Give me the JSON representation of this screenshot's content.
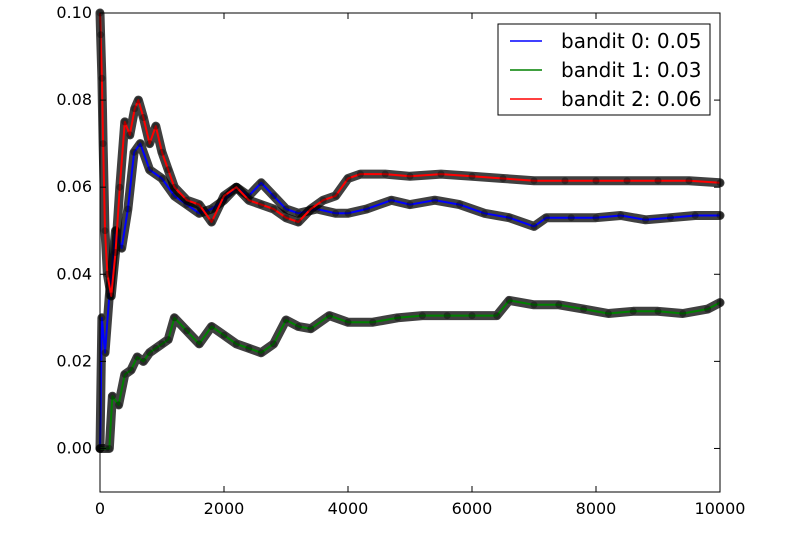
{
  "chart_data": {
    "type": "line",
    "title": "",
    "xlabel": "",
    "ylabel": "",
    "xlim": [
      0,
      10000
    ],
    "ylim": [
      -0.01,
      0.1
    ],
    "x_ticks": [
      0,
      2000,
      4000,
      6000,
      8000,
      10000
    ],
    "x_tick_labels": [
      "0",
      "2000",
      "4000",
      "6000",
      "8000",
      "10000"
    ],
    "y_ticks": [
      0.0,
      0.02,
      0.04,
      0.06,
      0.08,
      0.1
    ],
    "y_tick_labels": [
      "0.00",
      "0.02",
      "0.04",
      "0.06",
      "0.08",
      "0.10"
    ],
    "grid": false,
    "legend_position": "top-right",
    "legend": [
      "bandit 0: 0.05",
      "bandit 1: 0.03",
      "bandit 2: 0.06"
    ],
    "series": [
      {
        "name": "bandit 0: 0.05",
        "color": "#0000ff",
        "x": [
          0,
          30,
          80,
          150,
          250,
          350,
          450,
          550,
          650,
          800,
          1000,
          1200,
          1400,
          1600,
          1800,
          2000,
          2200,
          2400,
          2600,
          2800,
          3000,
          3200,
          3500,
          3800,
          4000,
          4300,
          4700,
          5000,
          5400,
          5800,
          6200,
          6600,
          7000,
          7200,
          7600,
          8000,
          8400,
          8800,
          9200,
          9600,
          10000
        ],
        "y": [
          0.0,
          0.03,
          0.022,
          0.035,
          0.05,
          0.046,
          0.055,
          0.068,
          0.07,
          0.064,
          0.062,
          0.058,
          0.056,
          0.054,
          0.055,
          0.057,
          0.06,
          0.058,
          0.061,
          0.058,
          0.055,
          0.054,
          0.055,
          0.054,
          0.054,
          0.055,
          0.057,
          0.056,
          0.057,
          0.056,
          0.054,
          0.053,
          0.051,
          0.053,
          0.053,
          0.053,
          0.0535,
          0.0525,
          0.053,
          0.0535,
          0.0535
        ]
      },
      {
        "name": "bandit 1: 0.03",
        "color": "#008000",
        "x": [
          0,
          100,
          150,
          200,
          300,
          400,
          500,
          600,
          700,
          800,
          900,
          1000,
          1100,
          1200,
          1400,
          1600,
          1800,
          2000,
          2200,
          2400,
          2600,
          2800,
          3000,
          3200,
          3400,
          3700,
          4000,
          4400,
          4800,
          5200,
          5600,
          6000,
          6400,
          6600,
          7000,
          7400,
          7800,
          8200,
          8600,
          9000,
          9400,
          9800,
          10000
        ],
        "y": [
          0.0,
          0.0,
          0.0,
          0.012,
          0.01,
          0.017,
          0.018,
          0.021,
          0.02,
          0.022,
          0.023,
          0.024,
          0.025,
          0.03,
          0.027,
          0.024,
          0.028,
          0.026,
          0.024,
          0.023,
          0.022,
          0.024,
          0.0295,
          0.028,
          0.0275,
          0.0305,
          0.029,
          0.029,
          0.03,
          0.0305,
          0.0305,
          0.0305,
          0.0305,
          0.034,
          0.033,
          0.033,
          0.032,
          0.031,
          0.0315,
          0.0315,
          0.031,
          0.032,
          0.0335
        ]
      },
      {
        "name": "bandit 2: 0.06",
        "color": "#ff0000",
        "x": [
          0,
          10,
          30,
          50,
          80,
          120,
          180,
          250,
          320,
          400,
          480,
          560,
          620,
          700,
          800,
          900,
          1000,
          1100,
          1200,
          1400,
          1600,
          1800,
          2000,
          2200,
          2400,
          2600,
          2800,
          3000,
          3200,
          3400,
          3600,
          3800,
          4000,
          4200,
          4600,
          5000,
          5500,
          6000,
          6500,
          7000,
          7500,
          8000,
          8500,
          9000,
          9500,
          10000
        ],
        "y": [
          0.1,
          0.095,
          0.085,
          0.07,
          0.05,
          0.04,
          0.035,
          0.045,
          0.06,
          0.075,
          0.072,
          0.078,
          0.08,
          0.076,
          0.07,
          0.074,
          0.068,
          0.064,
          0.06,
          0.057,
          0.056,
          0.052,
          0.058,
          0.06,
          0.057,
          0.056,
          0.055,
          0.053,
          0.052,
          0.055,
          0.057,
          0.058,
          0.062,
          0.063,
          0.063,
          0.0625,
          0.063,
          0.0625,
          0.062,
          0.0615,
          0.0615,
          0.0615,
          0.0615,
          0.0615,
          0.0615,
          0.061
        ]
      }
    ]
  }
}
